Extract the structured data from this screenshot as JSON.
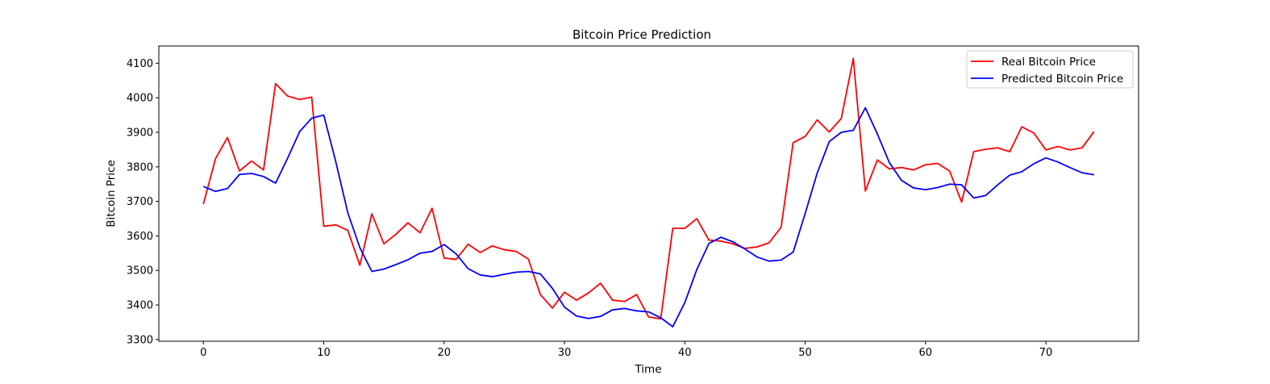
{
  "chart_data": {
    "type": "line",
    "title": "Bitcoin Price Prediction",
    "xlabel": "Time",
    "ylabel": "Bitcoin Price",
    "xlim": [
      -3.7,
      77.7
    ],
    "ylim": [
      3295,
      4150
    ],
    "xticks": [
      0,
      10,
      20,
      30,
      40,
      50,
      60,
      70
    ],
    "yticks": [
      3300,
      3400,
      3500,
      3600,
      3700,
      3800,
      3900,
      4000,
      4100
    ],
    "grid": false,
    "legend_position": "top-right",
    "x": [
      0,
      1,
      2,
      3,
      4,
      5,
      6,
      7,
      8,
      9,
      10,
      11,
      12,
      13,
      14,
      15,
      16,
      17,
      18,
      19,
      20,
      21,
      22,
      23,
      24,
      25,
      26,
      27,
      28,
      29,
      30,
      31,
      32,
      33,
      34,
      35,
      36,
      37,
      38,
      39,
      40,
      41,
      42,
      43,
      44,
      45,
      46,
      47,
      48,
      49,
      50,
      51,
      52,
      53,
      54,
      55,
      56,
      57,
      58,
      59,
      60,
      61,
      62,
      63,
      64,
      65,
      66,
      67,
      68,
      69,
      70,
      71,
      72,
      73,
      74
    ],
    "series": [
      {
        "name": "Real Bitcoin Price",
        "color": "#ff0000",
        "values": [
          3692,
          3823,
          3885,
          3788,
          3817,
          3791,
          4041,
          4005,
          3995,
          4002,
          3628,
          3632,
          3616,
          3515,
          3664,
          3577,
          3605,
          3638,
          3609,
          3680,
          3536,
          3532,
          3576,
          3552,
          3571,
          3560,
          3555,
          3533,
          3430,
          3391,
          3437,
          3414,
          3435,
          3463,
          3414,
          3410,
          3430,
          3365,
          3360,
          3622,
          3622,
          3650,
          3588,
          3585,
          3577,
          3564,
          3568,
          3580,
          3625,
          3870,
          3888,
          3936,
          3901,
          3940,
          4114,
          3730,
          3820,
          3794,
          3798,
          3791,
          3806,
          3810,
          3788,
          3698,
          3844,
          3851,
          3855,
          3844,
          3916,
          3898,
          3849,
          3859,
          3849,
          3855,
          3902
        ]
      },
      {
        "name": "Predicted Bitcoin Price",
        "color": "#0000ff",
        "values": [
          3743,
          3729,
          3737,
          3778,
          3781,
          3772,
          3753,
          3825,
          3902,
          3941,
          3950,
          3815,
          3667,
          3566,
          3497,
          3504,
          3517,
          3531,
          3550,
          3555,
          3575,
          3548,
          3505,
          3487,
          3482,
          3489,
          3495,
          3497,
          3490,
          3448,
          3394,
          3368,
          3361,
          3367,
          3386,
          3390,
          3383,
          3380,
          3363,
          3337,
          3407,
          3503,
          3578,
          3596,
          3583,
          3562,
          3539,
          3527,
          3530,
          3553,
          3665,
          3782,
          3873,
          3900,
          3906,
          3971,
          3895,
          3812,
          3761,
          3739,
          3734,
          3740,
          3750,
          3748,
          3710,
          3717,
          3748,
          3776,
          3786,
          3809,
          3826,
          3814,
          3798,
          3783,
          3777
        ]
      }
    ]
  }
}
